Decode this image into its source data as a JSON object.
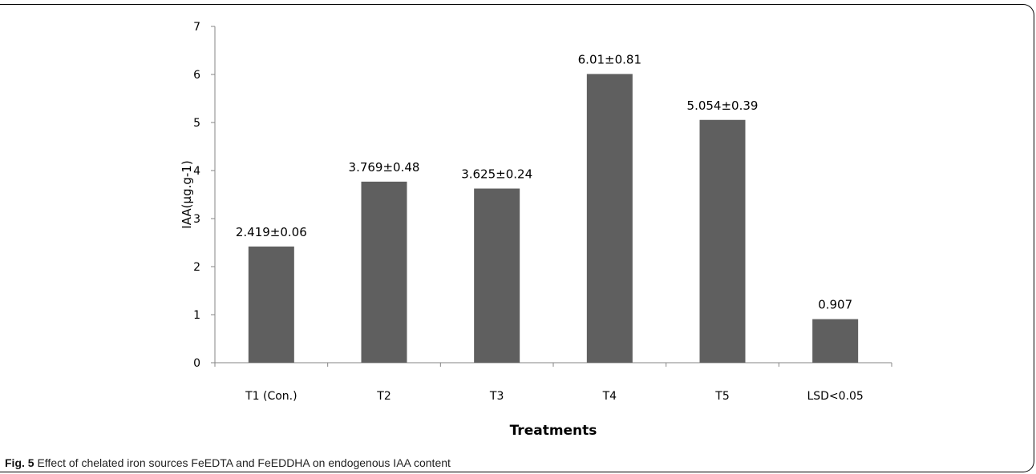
{
  "chart_data": {
    "type": "bar",
    "categories": [
      "T1 (Con.)",
      "T2",
      "T3",
      "T4",
      "T5",
      "LSD<0.05"
    ],
    "values": [
      2.419,
      3.769,
      3.625,
      6.01,
      5.054,
      0.907
    ],
    "data_labels": [
      "2.419±0.06",
      "3.769±0.48",
      "3.625±0.24",
      "6.01±0.81",
      "5.054±0.39",
      "0.907"
    ],
    "xlabel": "Treatments",
    "ylabel": "IAA(µg.g-1)",
    "ylim": [
      0,
      7
    ],
    "yticks": [
      "0",
      "1",
      "2",
      "3",
      "4",
      "5",
      "6",
      "7"
    ],
    "grid": false,
    "bar_color": "#5f5f5f"
  },
  "caption": {
    "label": "Fig. 5",
    "text": " Effect of chelated iron sources FeEDTA and FeEDDHA on endogenous IAA content"
  }
}
